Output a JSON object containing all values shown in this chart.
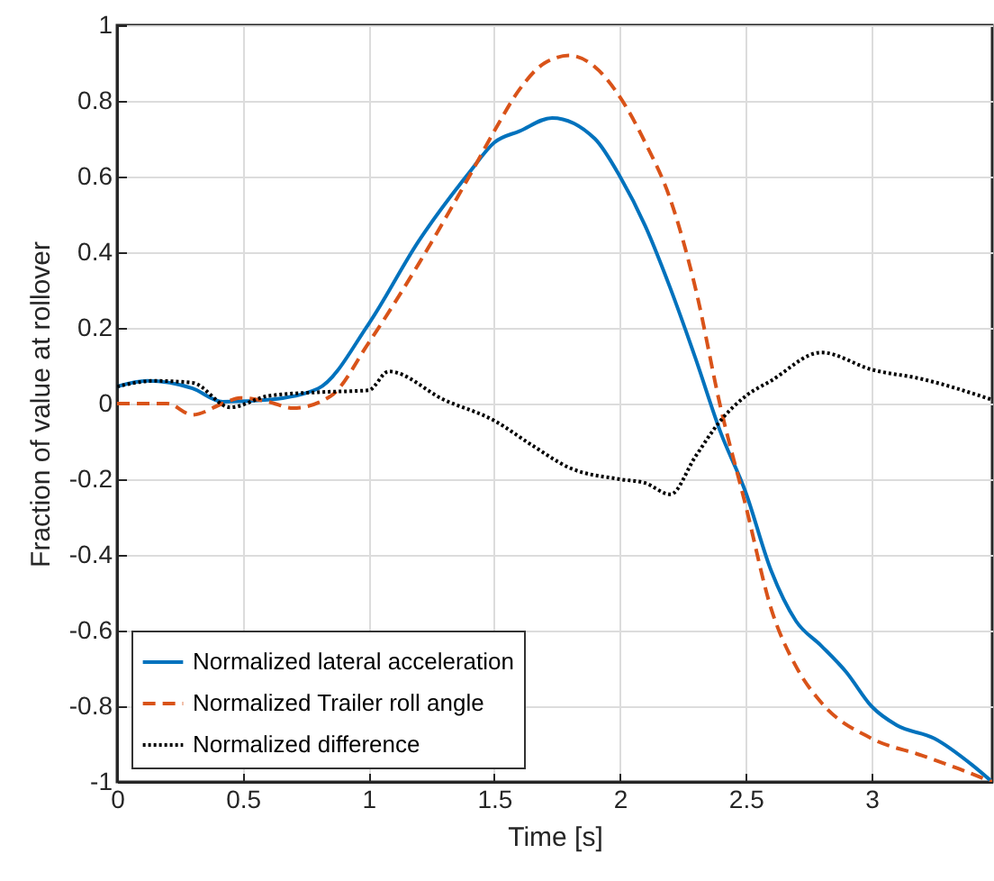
{
  "chart_data": {
    "type": "line",
    "xlabel": "Time [s]",
    "ylabel": "Fraction of value at rollover",
    "xlim": [
      0,
      3.48
    ],
    "xticks": [
      0,
      0.5,
      1,
      1.5,
      2,
      2.5,
      3
    ],
    "ylim": [
      -1,
      1
    ],
    "yticks": [
      -1,
      -0.8,
      -0.6,
      -0.4,
      -0.2,
      0,
      0.2,
      0.4,
      0.6,
      0.8,
      1
    ],
    "grid": true,
    "legend": "bottom left",
    "series": [
      {
        "name": "Normalized lateral acceleration",
        "color": "#0072bd",
        "line_style": "solid",
        "x": [
          0,
          0.12,
          0.3,
          0.42,
          0.6,
          0.8,
          1.0,
          1.2,
          1.4,
          1.5,
          1.6,
          1.73,
          1.9,
          2.0,
          2.1,
          2.2,
          2.3,
          2.4,
          2.5,
          2.6,
          2.7,
          2.8,
          2.9,
          3.0,
          3.1,
          3.25,
          3.4,
          3.48
        ],
        "values": [
          0.045,
          0.06,
          0.04,
          0.005,
          0.01,
          0.04,
          0.21,
          0.43,
          0.61,
          0.69,
          0.72,
          0.755,
          0.7,
          0.6,
          0.47,
          0.305,
          0.12,
          -0.076,
          -0.235,
          -0.44,
          -0.575,
          -0.64,
          -0.71,
          -0.8,
          -0.85,
          -0.885,
          -0.955,
          -1
        ]
      },
      {
        "name": "Normalized Trailer roll angle",
        "color": "#d95319",
        "line_style": "dashed",
        "x": [
          0,
          0.2,
          0.3,
          0.42,
          0.49,
          0.6,
          0.7,
          0.85,
          1.0,
          1.2,
          1.4,
          1.5,
          1.6,
          1.7,
          1.8,
          1.9,
          2.0,
          2.1,
          2.2,
          2.3,
          2.4,
          2.5,
          2.6,
          2.7,
          2.8,
          3.0,
          3.2,
          3.35,
          3.48
        ],
        "values": [
          0,
          0,
          -0.03,
          0,
          0.015,
          0.005,
          -0.012,
          0.02,
          0.16,
          0.37,
          0.6,
          0.72,
          0.83,
          0.9,
          0.92,
          0.89,
          0.81,
          0.69,
          0.54,
          0.305,
          -0.01,
          -0.27,
          -0.54,
          -0.695,
          -0.79,
          -0.885,
          -0.93,
          -0.966,
          -1
        ]
      },
      {
        "name": "Normalized difference",
        "color": "#000000",
        "line_style": "dotted",
        "x": [
          0,
          0.15,
          0.3,
          0.45,
          0.6,
          0.8,
          1.0,
          1.08,
          1.3,
          1.5,
          1.65,
          1.8,
          2.0,
          2.1,
          2.2,
          2.3,
          2.4,
          2.5,
          2.6,
          2.8,
          3.0,
          3.2,
          3.48
        ],
        "values": [
          0.045,
          0.06,
          0.055,
          -0.01,
          0.02,
          0.03,
          0.035,
          0.085,
          0.01,
          -0.045,
          -0.11,
          -0.17,
          -0.2,
          -0.21,
          -0.24,
          -0.14,
          -0.045,
          0.02,
          0.06,
          0.135,
          0.09,
          0.065,
          0.01
        ]
      }
    ]
  }
}
